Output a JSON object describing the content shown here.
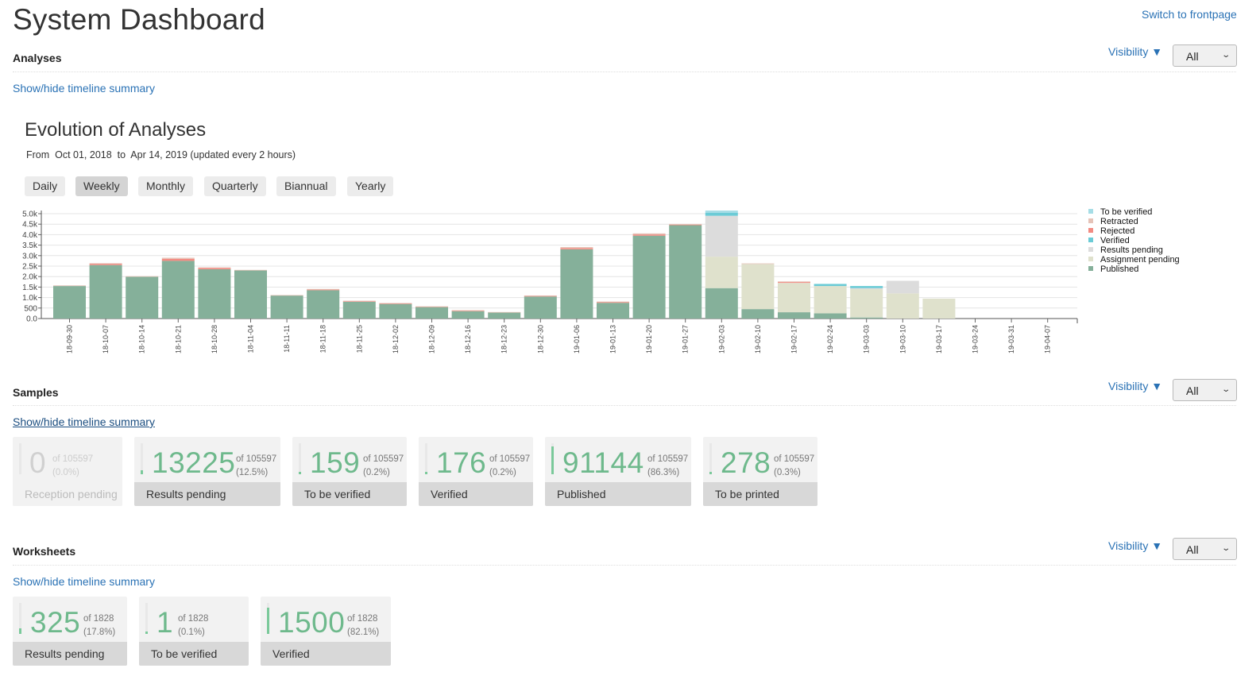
{
  "header": {
    "title": "System Dashboard",
    "switch_label": "Switch to frontpage"
  },
  "analyses": {
    "title": "Analyses",
    "visibility_label": "Visibility ▼",
    "visibility_value": "All",
    "toggle_label": "Show/hide timeline summary"
  },
  "chart_header": {
    "title": "Evolution of Analyses",
    "subtitle": "From  Oct 01, 2018  to  Apr 14, 2019 (updated every 2 hours)",
    "periods": [
      "Daily",
      "Weekly",
      "Monthly",
      "Quarterly",
      "Biannual",
      "Yearly"
    ],
    "active_period": "Weekly"
  },
  "chart_data": {
    "type": "bar",
    "stacked": true,
    "categories": [
      "18-09-30",
      "18-10-07",
      "18-10-14",
      "18-10-21",
      "18-10-28",
      "18-11-04",
      "18-11-11",
      "18-11-18",
      "18-11-25",
      "18-12-02",
      "18-12-09",
      "18-12-16",
      "18-12-23",
      "18-12-30",
      "19-01-06",
      "19-01-13",
      "19-01-20",
      "19-01-27",
      "19-02-03",
      "19-02-10",
      "19-02-17",
      "19-02-24",
      "19-03-03",
      "19-03-10",
      "19-03-17",
      "19-03-24",
      "19-03-31",
      "19-04-07"
    ],
    "yticks": [
      "0.0",
      "500",
      "1.0k",
      "1.5k",
      "2.0k",
      "2.5k",
      "3.0k",
      "3.5k",
      "4.0k",
      "4.5k",
      "5.0k"
    ],
    "ylim": [
      0,
      5000
    ],
    "series": [
      {
        "name": "Published",
        "color": "#85b09a",
        "values": [
          1550,
          2550,
          2000,
          2750,
          2350,
          2300,
          1100,
          1350,
          800,
          700,
          550,
          350,
          300,
          1050,
          3300,
          750,
          3950,
          4450,
          1450,
          450,
          300,
          250,
          50,
          0,
          0,
          0,
          0,
          0
        ]
      },
      {
        "name": "Assignment pending",
        "color": "#dfe1cc",
        "values": [
          0,
          0,
          0,
          0,
          0,
          0,
          0,
          0,
          0,
          0,
          0,
          0,
          0,
          0,
          0,
          0,
          0,
          0,
          1500,
          2150,
          1400,
          1300,
          1350,
          1200,
          950,
          0,
          0,
          0
        ]
      },
      {
        "name": "Results pending",
        "color": "#dcdcdc",
        "values": [
          0,
          0,
          0,
          0,
          0,
          0,
          0,
          0,
          0,
          0,
          0,
          0,
          0,
          0,
          0,
          0,
          0,
          0,
          1950,
          0,
          0,
          0,
          50,
          600,
          0,
          0,
          0,
          0
        ]
      },
      {
        "name": "Verified",
        "color": "#6bcbd6",
        "values": [
          0,
          0,
          0,
          0,
          0,
          0,
          0,
          0,
          0,
          0,
          0,
          0,
          0,
          0,
          0,
          0,
          0,
          0,
          150,
          0,
          0,
          100,
          100,
          0,
          0,
          0,
          0,
          0
        ]
      },
      {
        "name": "Rejected",
        "color": "#f28b82",
        "values": [
          0,
          60,
          0,
          100,
          60,
          0,
          0,
          30,
          30,
          20,
          20,
          30,
          0,
          30,
          60,
          40,
          60,
          30,
          0,
          0,
          40,
          0,
          0,
          0,
          0,
          0,
          0,
          0
        ]
      },
      {
        "name": "Retracted",
        "color": "#e5c3b8",
        "values": [
          30,
          30,
          20,
          50,
          30,
          20,
          20,
          30,
          20,
          20,
          10,
          20,
          10,
          20,
          50,
          20,
          50,
          30,
          0,
          30,
          30,
          0,
          0,
          0,
          0,
          0,
          0,
          0
        ]
      },
      {
        "name": "To be verified",
        "color": "#a6dde6",
        "values": [
          0,
          0,
          0,
          0,
          0,
          0,
          0,
          0,
          0,
          0,
          0,
          0,
          0,
          0,
          0,
          0,
          0,
          0,
          100,
          0,
          0,
          0,
          0,
          0,
          0,
          0,
          0,
          0
        ]
      }
    ],
    "legend": [
      "To be verified",
      "Retracted",
      "Rejected",
      "Verified",
      "Results pending",
      "Assignment pending",
      "Published"
    ],
    "legend_colors": [
      "#a6dde6",
      "#e5c3b8",
      "#f28b82",
      "#6bcbd6",
      "#dcdcdc",
      "#dfe1cc",
      "#85b09a"
    ],
    "grid": true,
    "legend_position": "right"
  },
  "samples": {
    "title": "Samples",
    "visibility_label": "Visibility ▼",
    "visibility_value": "All",
    "toggle_label": "Show/hide timeline summary",
    "tiles": [
      {
        "value": "0",
        "of": "of 105597",
        "pct": "(0.0%)",
        "label": "Reception pending",
        "fraction": 0.0
      },
      {
        "value": "13225",
        "of": "of 105597",
        "pct": "(12.5%)",
        "label": "Results pending",
        "fraction": 0.125
      },
      {
        "value": "159",
        "of": "of 105597",
        "pct": "(0.2%)",
        "label": "To be verified",
        "fraction": 0.002
      },
      {
        "value": "176",
        "of": "of 105597",
        "pct": "(0.2%)",
        "label": "Verified",
        "fraction": 0.002
      },
      {
        "value": "91144",
        "of": "of 105597",
        "pct": "(86.3%)",
        "label": "Published",
        "fraction": 0.863
      },
      {
        "value": "278",
        "of": "of 105597",
        "pct": "(0.3%)",
        "label": "To be printed",
        "fraction": 0.003
      }
    ]
  },
  "worksheets": {
    "title": "Worksheets",
    "visibility_label": "Visibility ▼",
    "visibility_value": "All",
    "toggle_label": "Show/hide timeline summary",
    "tiles": [
      {
        "value": "325",
        "of": "of 1828",
        "pct": "(17.8%)",
        "label": "Results pending",
        "fraction": 0.178
      },
      {
        "value": "1",
        "of": "of 1828",
        "pct": "(0.1%)",
        "label": "To be verified",
        "fraction": 0.001
      },
      {
        "value": "1500",
        "of": "of 1828",
        "pct": "(82.1%)",
        "label": "Verified",
        "fraction": 0.821
      }
    ]
  }
}
